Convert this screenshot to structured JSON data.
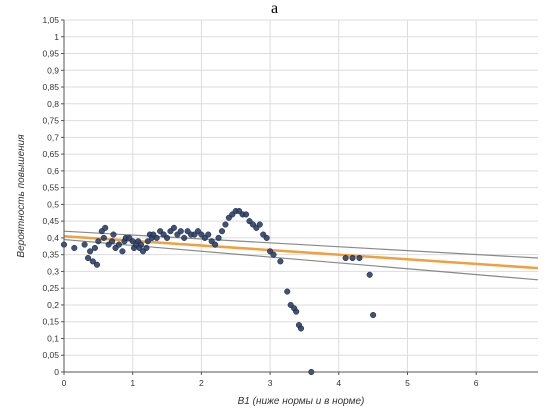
{
  "figure": {
    "panel_label": "a"
  },
  "chart_data": {
    "type": "scatter",
    "xlabel": "B1 (ниже нормы и в норме)",
    "ylabel": "Вероятность повышения",
    "xlim": [
      0,
      6.9
    ],
    "ylim": [
      0,
      1.05
    ],
    "grid": true,
    "x_ticks": [
      "0",
      "1",
      "2",
      "3",
      "4",
      "5",
      "6"
    ],
    "y_ticks": [
      "0",
      "0,05",
      "0,1",
      "0,15",
      "0,2",
      "0,25",
      "0,3",
      "0,35",
      "0,4",
      "0,45",
      "0,5",
      "0,55",
      "0,6",
      "0,65",
      "0,7",
      "0,75",
      "0,8",
      "0,85",
      "0,9",
      "0,95",
      "1",
      "1,05"
    ],
    "colors": {
      "points": "#2b3f66",
      "fit": "#f0a040",
      "bounds": "#888888",
      "grid": "#dddddd",
      "axis": "#555555"
    },
    "points": [
      {
        "x": 0.0,
        "y": 0.38
      },
      {
        "x": 0.15,
        "y": 0.37
      },
      {
        "x": 0.3,
        "y": 0.38
      },
      {
        "x": 0.35,
        "y": 0.34
      },
      {
        "x": 0.38,
        "y": 0.36
      },
      {
        "x": 0.42,
        "y": 0.33
      },
      {
        "x": 0.45,
        "y": 0.37
      },
      {
        "x": 0.48,
        "y": 0.32
      },
      {
        "x": 0.5,
        "y": 0.39
      },
      {
        "x": 0.55,
        "y": 0.42
      },
      {
        "x": 0.58,
        "y": 0.4
      },
      {
        "x": 0.6,
        "y": 0.43
      },
      {
        "x": 0.65,
        "y": 0.38
      },
      {
        "x": 0.7,
        "y": 0.39
      },
      {
        "x": 0.72,
        "y": 0.41
      },
      {
        "x": 0.75,
        "y": 0.37
      },
      {
        "x": 0.8,
        "y": 0.38
      },
      {
        "x": 0.85,
        "y": 0.36
      },
      {
        "x": 0.88,
        "y": 0.39
      },
      {
        "x": 0.9,
        "y": 0.4
      },
      {
        "x": 0.95,
        "y": 0.4
      },
      {
        "x": 1.0,
        "y": 0.39
      },
      {
        "x": 1.02,
        "y": 0.37
      },
      {
        "x": 1.05,
        "y": 0.38
      },
      {
        "x": 1.08,
        "y": 0.39
      },
      {
        "x": 1.1,
        "y": 0.37
      },
      {
        "x": 1.12,
        "y": 0.38
      },
      {
        "x": 1.15,
        "y": 0.36
      },
      {
        "x": 1.2,
        "y": 0.37
      },
      {
        "x": 1.22,
        "y": 0.39
      },
      {
        "x": 1.25,
        "y": 0.41
      },
      {
        "x": 1.28,
        "y": 0.4
      },
      {
        "x": 1.3,
        "y": 0.41
      },
      {
        "x": 1.35,
        "y": 0.4
      },
      {
        "x": 1.4,
        "y": 0.42
      },
      {
        "x": 1.45,
        "y": 0.41
      },
      {
        "x": 1.5,
        "y": 0.4
      },
      {
        "x": 1.55,
        "y": 0.42
      },
      {
        "x": 1.6,
        "y": 0.43
      },
      {
        "x": 1.65,
        "y": 0.41
      },
      {
        "x": 1.7,
        "y": 0.42
      },
      {
        "x": 1.75,
        "y": 0.4
      },
      {
        "x": 1.8,
        "y": 0.42
      },
      {
        "x": 1.85,
        "y": 0.41
      },
      {
        "x": 1.9,
        "y": 0.41
      },
      {
        "x": 1.95,
        "y": 0.42
      },
      {
        "x": 2.0,
        "y": 0.41
      },
      {
        "x": 2.05,
        "y": 0.4
      },
      {
        "x": 2.1,
        "y": 0.41
      },
      {
        "x": 2.15,
        "y": 0.39
      },
      {
        "x": 2.2,
        "y": 0.38
      },
      {
        "x": 2.25,
        "y": 0.4
      },
      {
        "x": 2.3,
        "y": 0.42
      },
      {
        "x": 2.35,
        "y": 0.44
      },
      {
        "x": 2.4,
        "y": 0.46
      },
      {
        "x": 2.45,
        "y": 0.47
      },
      {
        "x": 2.5,
        "y": 0.48
      },
      {
        "x": 2.55,
        "y": 0.48
      },
      {
        "x": 2.6,
        "y": 0.47
      },
      {
        "x": 2.65,
        "y": 0.47
      },
      {
        "x": 2.7,
        "y": 0.45
      },
      {
        "x": 2.75,
        "y": 0.44
      },
      {
        "x": 2.8,
        "y": 0.43
      },
      {
        "x": 2.85,
        "y": 0.44
      },
      {
        "x": 2.9,
        "y": 0.41
      },
      {
        "x": 2.95,
        "y": 0.4
      },
      {
        "x": 3.0,
        "y": 0.36
      },
      {
        "x": 3.05,
        "y": 0.35
      },
      {
        "x": 3.15,
        "y": 0.33
      },
      {
        "x": 3.25,
        "y": 0.24
      },
      {
        "x": 3.3,
        "y": 0.2
      },
      {
        "x": 3.35,
        "y": 0.19
      },
      {
        "x": 3.38,
        "y": 0.18
      },
      {
        "x": 3.42,
        "y": 0.14
      },
      {
        "x": 3.45,
        "y": 0.13
      },
      {
        "x": 3.6,
        "y": 0.0
      },
      {
        "x": 4.1,
        "y": 0.34
      },
      {
        "x": 4.2,
        "y": 0.34
      },
      {
        "x": 4.3,
        "y": 0.34
      },
      {
        "x": 4.45,
        "y": 0.29
      },
      {
        "x": 4.5,
        "y": 0.17
      }
    ],
    "fit_line": {
      "x": [
        0,
        6.9
      ],
      "y": [
        0.405,
        0.31
      ]
    },
    "upper_bound": {
      "x": [
        0,
        6.9
      ],
      "y": [
        0.42,
        0.34
      ]
    },
    "lower_bound": {
      "x": [
        0,
        6.9
      ],
      "y": [
        0.395,
        0.275
      ]
    }
  }
}
